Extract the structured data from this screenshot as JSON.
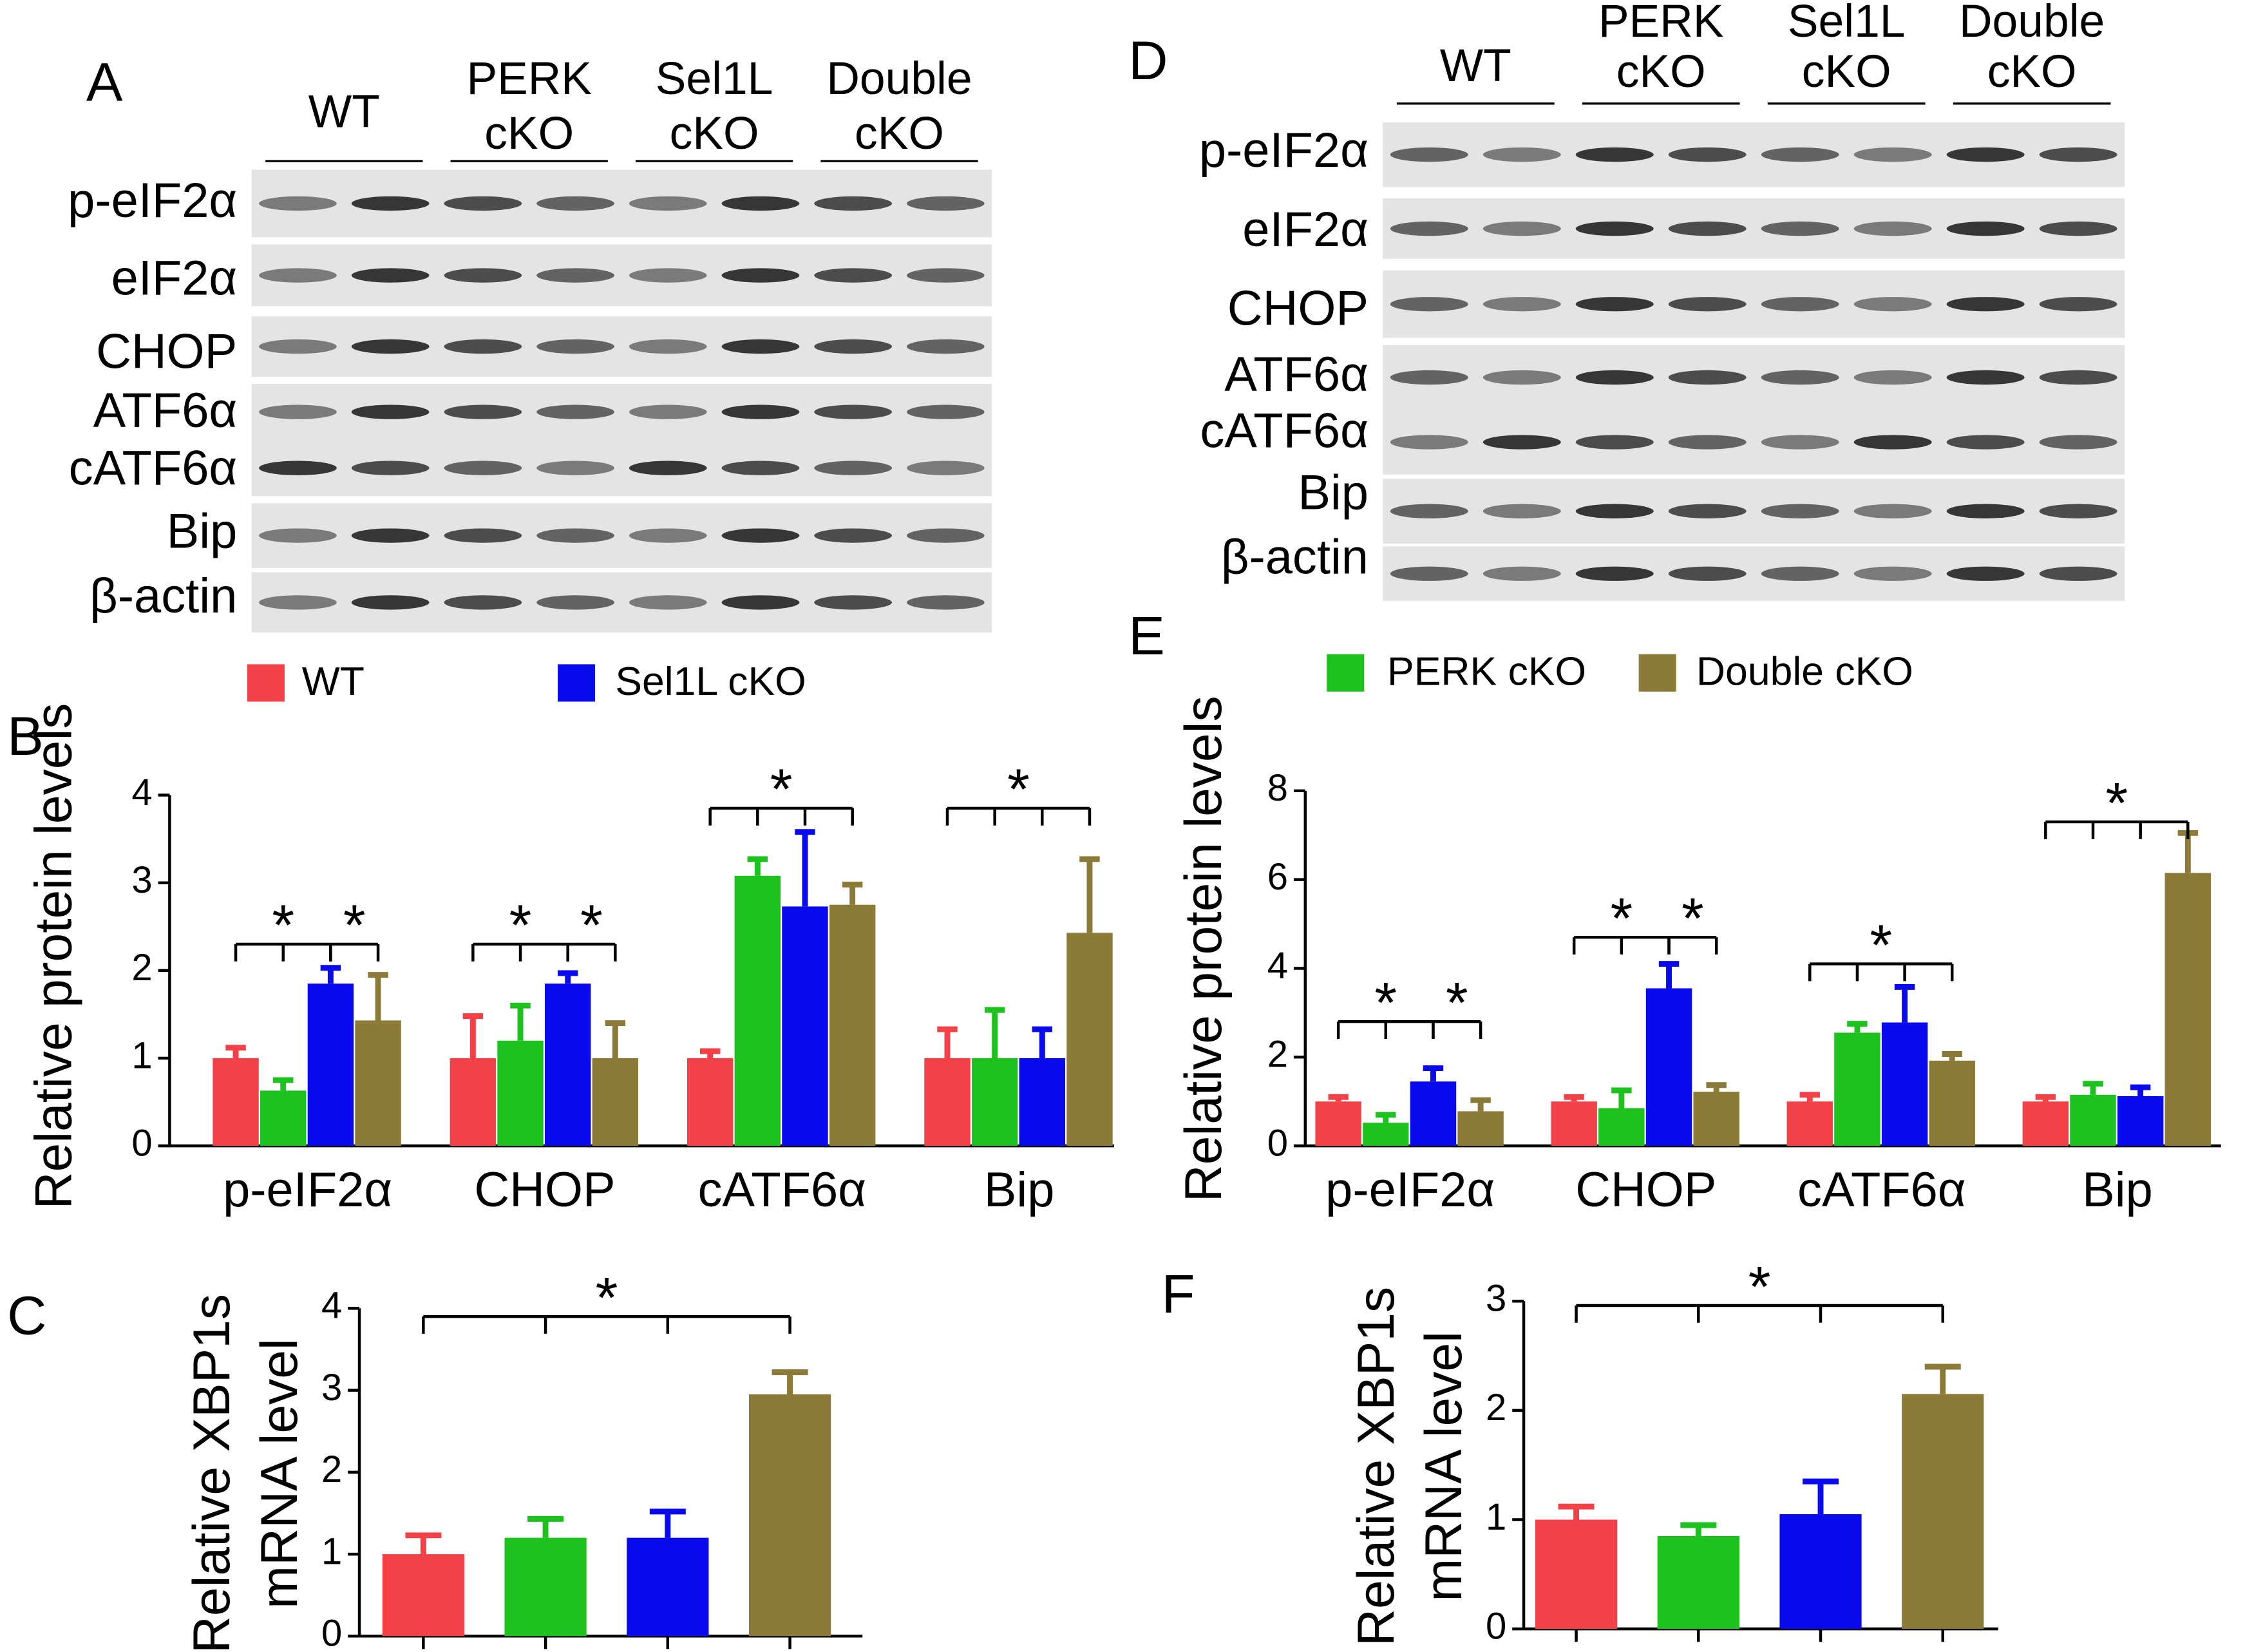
{
  "panel_labels": [
    "A",
    "B",
    "C",
    "D",
    "E",
    "F"
  ],
  "blots": [
    {
      "groups": [
        [
          "WT"
        ],
        [
          "PERK",
          "cKO"
        ],
        [
          "Sel1L",
          "cKO"
        ],
        [
          "Double",
          "cKO"
        ]
      ],
      "rows": [
        "p-eIF2α",
        "eIF2α",
        "CHOP",
        "ATF6α",
        "cATF6α",
        "Bip",
        "β-actin"
      ]
    },
    {
      "groups": [
        [
          "WT"
        ],
        [
          "PERK",
          "cKO"
        ],
        [
          "Sel1L",
          "cKO"
        ],
        [
          "Double",
          "cKO"
        ]
      ],
      "rows": [
        "p-eIF2α",
        "eIF2α",
        "CHOP",
        "ATF6α",
        "cATF6α",
        "Bip",
        "β-actin"
      ]
    }
  ],
  "chart_data": [
    {
      "type": "bar",
      "ylabel": [
        "Relative protein levels"
      ],
      "categories": [
        "p-eIF2α",
        "CHOP",
        "cATF6α",
        "Bip"
      ],
      "series": [
        {
          "name": "WT",
          "color": "#f44147",
          "values": [
            1.0,
            1.0,
            1.0,
            1.0
          ],
          "errors": [
            0.12,
            0.48,
            0.08,
            0.33
          ]
        },
        {
          "name": "PERK cKO",
          "color": "#1ec21e",
          "values": [
            0.63,
            1.2,
            3.08,
            1.0
          ],
          "errors": [
            0.12,
            0.4,
            0.19,
            0.55
          ]
        },
        {
          "name": "Sel1L cKO",
          "color": "#0a0aee",
          "values": [
            1.85,
            1.85,
            2.73,
            1.0
          ],
          "errors": [
            0.18,
            0.12,
            0.85,
            0.33
          ]
        },
        {
          "name": "Double cKO",
          "color": "#8b7a38",
          "values": [
            1.43,
            1.0,
            2.75,
            2.43
          ],
          "errors": [
            0.52,
            0.4,
            0.23,
            0.84
          ]
        }
      ],
      "ylim": [
        0,
        4
      ],
      "yticks": [
        0,
        1,
        2,
        3,
        4
      ],
      "annotations": [
        "*",
        "*",
        "*",
        "*",
        "*",
        "*"
      ]
    },
    {
      "type": "bar",
      "ylabel": [
        "Relative XBP1s",
        "mRNA level"
      ],
      "categories": [
        null
      ],
      "series": [
        {
          "color": "#f44147",
          "values": [
            1.0
          ],
          "errors": [
            0.23
          ]
        },
        {
          "color": "#1ec21e",
          "values": [
            1.2
          ],
          "errors": [
            0.23
          ]
        },
        {
          "color": "#0a0aee",
          "values": [
            1.2
          ],
          "errors": [
            0.32
          ]
        },
        {
          "color": "#8b7a38",
          "values": [
            2.95
          ],
          "errors": [
            0.27
          ]
        }
      ],
      "ylim": [
        0,
        4
      ],
      "yticks": [
        0,
        1,
        2,
        3,
        4
      ],
      "annotations": [
        "*"
      ]
    },
    {
      "type": "bar",
      "ylabel": [
        "Relative protein levels"
      ],
      "categories": [
        "p-eIF2α",
        "CHOP",
        "cATF6α",
        "Bip"
      ],
      "series": [
        {
          "color": "#f44147",
          "values": [
            1.0,
            1.0,
            1.0,
            1.0
          ],
          "errors": [
            0.1,
            0.1,
            0.15,
            0.1
          ]
        },
        {
          "color": "#1ec21e",
          "values": [
            0.52,
            0.85,
            2.55,
            1.15
          ],
          "errors": [
            0.18,
            0.4,
            0.2,
            0.25
          ]
        },
        {
          "color": "#0a0aee",
          "values": [
            1.45,
            3.55,
            2.78,
            1.12
          ],
          "errors": [
            0.3,
            0.55,
            0.8,
            0.2
          ]
        },
        {
          "color": "#8b7a38",
          "values": [
            0.78,
            1.22,
            1.92,
            6.15
          ],
          "errors": [
            0.25,
            0.15,
            0.15,
            0.9
          ]
        }
      ],
      "ylim": [
        0,
        8
      ],
      "yticks": [
        0,
        2,
        4,
        6,
        8
      ],
      "annotations": [
        "*",
        "*",
        "*",
        "*",
        "*",
        "*"
      ]
    },
    {
      "type": "bar",
      "ylabel": [
        "Relative XBP1s",
        "mRNA level"
      ],
      "categories": [
        null
      ],
      "series": [
        {
          "color": "#f44147",
          "values": [
            1.0
          ],
          "errors": [
            0.12
          ]
        },
        {
          "color": "#1ec21e",
          "values": [
            0.85
          ],
          "errors": [
            0.1
          ]
        },
        {
          "color": "#0a0aee",
          "values": [
            1.05
          ],
          "errors": [
            0.3
          ]
        },
        {
          "color": "#8b7a38",
          "values": [
            2.15
          ],
          "errors": [
            0.25
          ]
        }
      ],
      "ylim": [
        0,
        3
      ],
      "yticks": [
        0,
        1,
        2,
        3
      ],
      "annotations": [
        "*"
      ]
    }
  ]
}
